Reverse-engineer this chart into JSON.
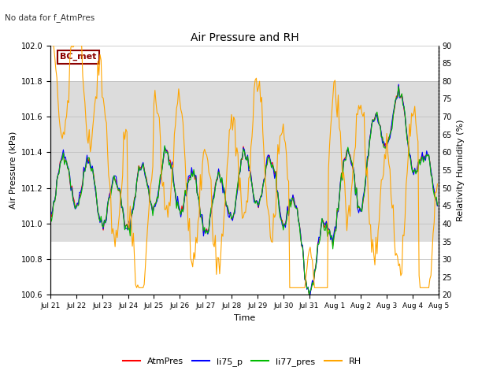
{
  "title": "Air Pressure and RH",
  "subtitle": "No data for f_AtmPres",
  "xlabel": "Time",
  "ylabel_left": "Air Pressure (kPa)",
  "ylabel_right": "Relativity Humidity (%)",
  "ylim_left": [
    100.6,
    102.0
  ],
  "ylim_right": [
    20,
    90
  ],
  "yticks_left": [
    100.6,
    100.8,
    101.0,
    101.2,
    101.4,
    101.6,
    101.8,
    102.0
  ],
  "yticks_right": [
    20,
    25,
    30,
    35,
    40,
    45,
    50,
    55,
    60,
    65,
    70,
    75,
    80,
    85,
    90
  ],
  "shaded_band": [
    100.9,
    101.8
  ],
  "xtick_labels": [
    "Jul 21",
    "Jul 22",
    "Jul 23",
    "Jul 24",
    "Jul 25",
    "Jul 26",
    "Jul 27",
    "Jul 28",
    "Jul 29",
    "Jul 30",
    "Jul 31",
    "Aug 1",
    "Aug 2",
    "Aug 3",
    "Aug 4",
    "Aug 5"
  ],
  "legend_labels": [
    "AtmPres",
    "li75_p",
    "li77_pres",
    "RH"
  ],
  "legend_colors": [
    "#ff0000",
    "#0000ff",
    "#00bb00",
    "#ffa500"
  ],
  "bc_met_label": "BC_met",
  "bc_met_color": "#8B0000",
  "line_width": 0.8,
  "background_color": "#ffffff",
  "shaded_color": "#dcdcdc"
}
